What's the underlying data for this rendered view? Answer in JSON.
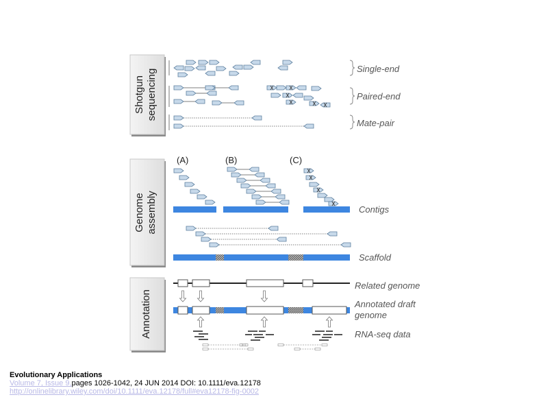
{
  "sections": {
    "shotgun": {
      "line1": "Shotgun",
      "line2": "sequencing"
    },
    "assembly": {
      "line1": "Genome",
      "line2": "assembly"
    },
    "annotation": {
      "line1": "Annotation"
    }
  },
  "read_labels": {
    "single_end": "Single-end",
    "paired_end": "Paired-end",
    "mate_pair": "Mate-pair"
  },
  "assembly_labels": {
    "panel_a": "(A)",
    "panel_b": "(B)",
    "panel_c": "(C)",
    "contigs": "Contigs",
    "scaffold": "Scaffold"
  },
  "annotation_labels": {
    "related_genome": "Related genome",
    "annotated_draft_1": "Annotated draft",
    "annotated_draft_2": "genome",
    "rna_seq": "RNA-seq data"
  },
  "colors": {
    "contig_blue": "#3d86e0",
    "read_fill": "#c7d9ea",
    "read_stroke": "#5d7f9e",
    "label_gray": "#555555",
    "panel_face": "#e8e8e8"
  },
  "caption": {
    "journal": "Evolutionary Applications",
    "volume_link": "Volume 7, Issue 9,",
    "pages_text": "pages 1026-1042, 24 JUN 2014 DOI: 10.1111/eva.12178",
    "figure_url": "http://onlinelibrary.wiley.com/doi/10.1111/eva.12178/full#eva12178-fig-0002"
  }
}
